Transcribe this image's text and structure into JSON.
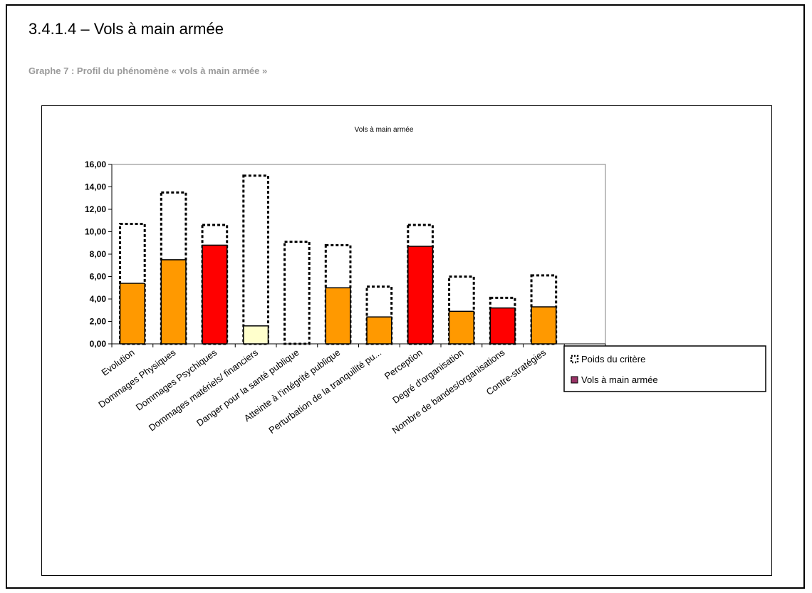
{
  "heading": "3.4.1.4 – Vols à main armée",
  "caption": "Graphe 7 : Profil du phénomène « vols à main armée »",
  "colors": {
    "orange": "#ff9900",
    "red": "#ff0000",
    "light": "#ffffcc",
    "legend_swatch": "#993366",
    "outline": "#000000"
  },
  "chart_data": {
    "type": "bar",
    "title": "Vols à main armée",
    "categories": [
      "Evolution",
      "Dommages Physiques",
      "Dommages Psychiques",
      "Dommages matériels/ financiers",
      "Danger pour la santé publique",
      "Atteinte à l'intégrité publique",
      "Perturbation de la tranquilité pu...",
      "Perception",
      "Degré d'organisation",
      "Nombre de bandes/organisations",
      "Contre-stratégies",
      ""
    ],
    "series": [
      {
        "name": "Poids du critère",
        "style": "dashed-outline",
        "values": [
          10.7,
          13.5,
          10.6,
          15.0,
          9.1,
          8.8,
          5.1,
          10.6,
          6.0,
          4.1,
          6.1,
          0
        ]
      },
      {
        "name": "Vols à main armée",
        "values": [
          5.4,
          7.5,
          8.8,
          1.6,
          0,
          5.0,
          2.4,
          8.7,
          2.9,
          3.2,
          3.3,
          0
        ],
        "bar_colors": [
          "orange",
          "orange",
          "red",
          "light",
          "none",
          "orange",
          "orange",
          "red",
          "orange",
          "red",
          "orange",
          "none"
        ]
      }
    ],
    "ylim": [
      0,
      16
    ],
    "yticks": [
      "0,00",
      "2,00",
      "4,00",
      "6,00",
      "8,00",
      "10,00",
      "12,00",
      "14,00",
      "16,00"
    ],
    "ytick_values": [
      0,
      2,
      4,
      6,
      8,
      10,
      12,
      14,
      16
    ],
    "grid": false,
    "legend": "right"
  }
}
